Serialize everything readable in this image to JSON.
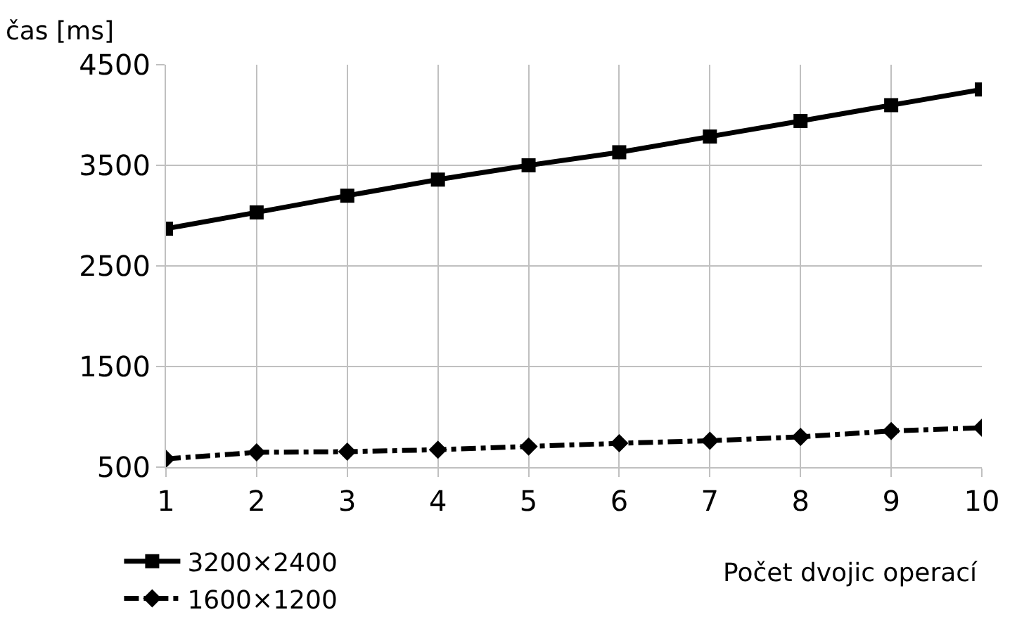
{
  "chart_data": {
    "type": "line",
    "ylabel": "čas [ms]",
    "xlabel": "Počet dvojic operací",
    "x": [
      1,
      2,
      3,
      4,
      5,
      6,
      7,
      8,
      9,
      10
    ],
    "series": [
      {
        "name": "3200×2400",
        "color": "#000000",
        "marker": "square",
        "line_style": "solid",
        "values": [
          2870,
          3032,
          3198,
          3358,
          3500,
          3630,
          3786,
          3941,
          4098,
          4254
        ]
      },
      {
        "name": "1600×1200",
        "color": "#000000",
        "marker": "diamond",
        "line_style": "dashdot",
        "values": [
          583,
          647,
          654,
          673,
          705,
          737,
          763,
          801,
          859,
          891
        ]
      }
    ],
    "xlim": [
      1,
      10
    ],
    "xticks": [
      1,
      2,
      3,
      4,
      5,
      6,
      7,
      8,
      9,
      10
    ],
    "ylim": [
      500,
      4500
    ],
    "yticks": [
      500,
      1500,
      2500,
      3500,
      4500
    ],
    "grid": true,
    "legend": "bottom left"
  }
}
